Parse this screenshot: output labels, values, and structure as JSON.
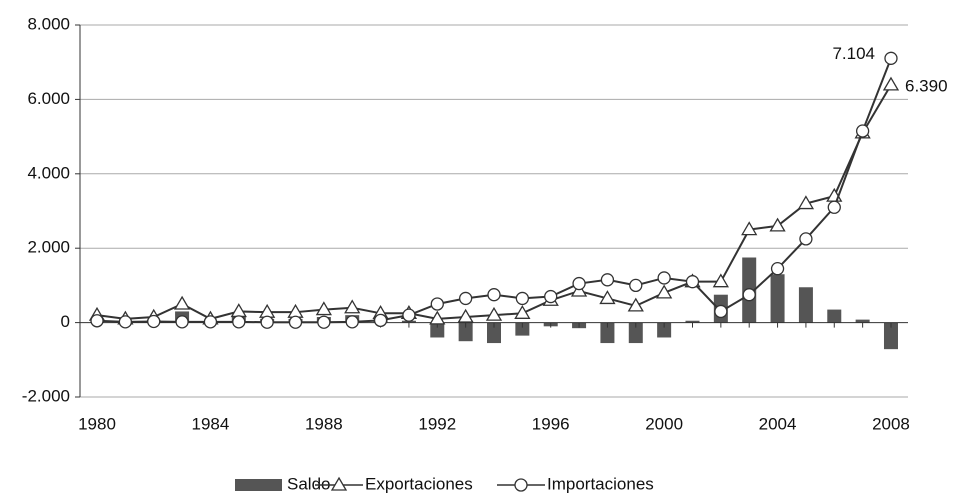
{
  "chart_data": {
    "type": "bar-line",
    "x": [
      1980,
      1981,
      1982,
      1983,
      1984,
      1985,
      1986,
      1987,
      1988,
      1989,
      1990,
      1991,
      1992,
      1993,
      1994,
      1995,
      1996,
      1997,
      1998,
      1999,
      2000,
      2001,
      2002,
      2003,
      2004,
      2005,
      2006,
      2007,
      2008
    ],
    "xlim": [
      1979.4,
      2008.6
    ],
    "xticks": [
      1980,
      1984,
      1988,
      1992,
      1996,
      2000,
      2004,
      2008
    ],
    "ylim": [
      -2000,
      8000
    ],
    "yticks": [
      {
        "value": -2000,
        "label": "-2.000"
      },
      0,
      {
        "value": 2000,
        "label": "2.000"
      },
      {
        "value": 4000,
        "label": "4.000"
      },
      {
        "value": 6000,
        "label": "6.000"
      },
      {
        "value": 8000,
        "label": "8.000"
      }
    ],
    "grid": true,
    "legend": "bottom",
    "series": [
      {
        "name": "Saldo",
        "type": "bar",
        "color": "#555555",
        "values": [
          20,
          10,
          20,
          300,
          20,
          200,
          100,
          100,
          150,
          200,
          100,
          50,
          -400,
          -500,
          -550,
          -350,
          -100,
          -150,
          -550,
          -550,
          -400,
          50,
          750,
          1750,
          1300,
          950,
          350,
          80,
          -714
        ]
      },
      {
        "name": "Exportaciones",
        "type": "line",
        "marker": "triangle",
        "color": "#333333",
        "values": [
          200,
          100,
          150,
          500,
          100,
          300,
          280,
          280,
          350,
          400,
          250,
          250,
          100,
          150,
          200,
          250,
          600,
          850,
          650,
          450,
          800,
          1100,
          1100,
          2500,
          2600,
          3200,
          3400,
          5100,
          6390
        ],
        "value_labels": [
          null,
          null,
          null,
          null,
          null,
          null,
          null,
          null,
          null,
          null,
          null,
          null,
          null,
          null,
          null,
          null,
          null,
          null,
          null,
          null,
          null,
          null,
          null,
          null,
          null,
          null,
          null,
          null,
          "6.390"
        ]
      },
      {
        "name": "Importaciones",
        "type": "line",
        "marker": "circle",
        "color": "#333333",
        "values": [
          50,
          20,
          30,
          20,
          20,
          20,
          10,
          10,
          10,
          20,
          60,
          200,
          500,
          650,
          750,
          650,
          700,
          1050,
          1150,
          1000,
          1200,
          1100,
          300,
          750,
          1450,
          2250,
          3100,
          5150,
          7104
        ],
        "value_labels": [
          null,
          null,
          null,
          null,
          null,
          null,
          null,
          null,
          null,
          null,
          null,
          null,
          null,
          null,
          null,
          null,
          null,
          null,
          null,
          null,
          null,
          null,
          null,
          null,
          null,
          null,
          null,
          null,
          "7.104"
        ]
      }
    ]
  }
}
